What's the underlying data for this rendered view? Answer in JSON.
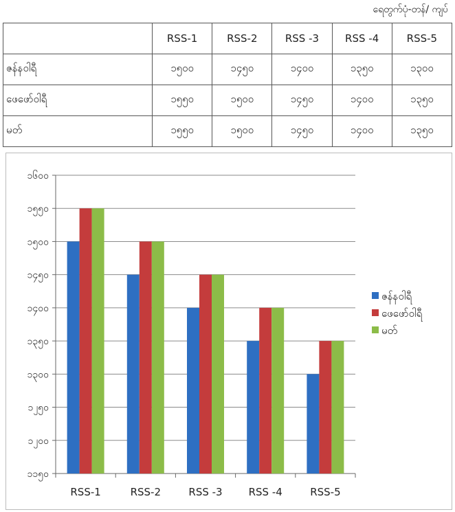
{
  "unit_label": "ရေတွက်ပုံ-တန်/ ကျပ်",
  "table": {
    "columns": [
      "RSS-1",
      "RSS-2",
      "RSS -3",
      "RSS -4",
      "RSS-5"
    ],
    "rows": [
      {
        "label": "ဇန်နဝါရီ",
        "values": [
          "၁၅၀၀",
          "၁၄၅၀",
          "၁၄၀၀",
          "၁၃၅၀",
          "၁၃၀၀"
        ]
      },
      {
        "label": "ဖေဖော်ဝါရီ",
        "values": [
          "၁၅၅၀",
          "၁၅၀၀",
          "၁၄၅၀",
          "၁၄၀၀",
          "၁၃၅၀"
        ]
      },
      {
        "label": "မတ်",
        "values": [
          "၁၅၅၀",
          "၁၅၀၀",
          "၁၄၅၀",
          "၁၄၀၀",
          "၁၃၅၀"
        ]
      }
    ]
  },
  "chart_data": {
    "type": "bar",
    "categories": [
      "RSS-1",
      "RSS-2",
      "RSS -3",
      "RSS -4",
      "RSS-5"
    ],
    "series": [
      {
        "name": "ဇန်နဝါရီ",
        "values": [
          1500,
          1450,
          1400,
          1350,
          1300
        ],
        "color": "#2e6fc2"
      },
      {
        "name": "ဖေဖော်ဝါရီ",
        "values": [
          1550,
          1500,
          1450,
          1400,
          1350
        ],
        "color": "#c43c3c"
      },
      {
        "name": "မတ်",
        "values": [
          1550,
          1500,
          1450,
          1400,
          1350
        ],
        "color": "#8cbc48"
      }
    ],
    "ylim": [
      1150,
      1600
    ],
    "yticks": [
      1150,
      1200,
      1250,
      1300,
      1350,
      1400,
      1450,
      1500,
      1550,
      1600
    ],
    "ytick_labels": [
      "၁၁၅၀",
      "၁၂၀၀",
      "၁၂၅၀",
      "၁၃၀၀",
      "၁၃၅၀",
      "၁၄၀၀",
      "၁၄၅၀",
      "၁၅၀၀",
      "၁၅၅၀",
      "၁၆၀၀"
    ],
    "grid": true,
    "legend_position": "right",
    "title": "",
    "xlabel": "",
    "ylabel": ""
  }
}
